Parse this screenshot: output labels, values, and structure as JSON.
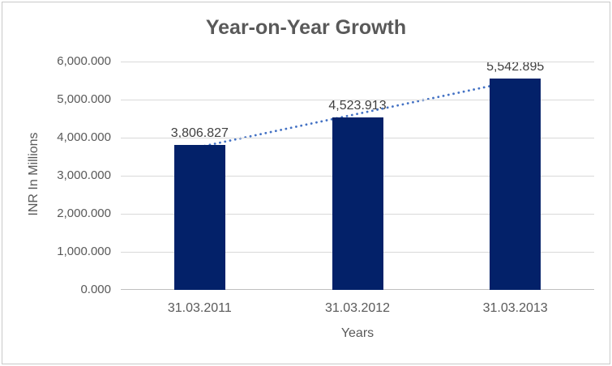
{
  "chart_data": {
    "type": "bar",
    "title": "Year-on-Year Growth",
    "xlabel": "Years",
    "ylabel": "INR In Millions",
    "categories": [
      "31.03.2011",
      "31.03.2012",
      "31.03.2013"
    ],
    "values": [
      3806.827,
      4523.913,
      5542.895
    ],
    "data_labels": [
      "3,806.827",
      "4,523.913",
      "5,542.895"
    ],
    "ylim": [
      0,
      6000
    ],
    "y_ticks": [
      0,
      1000,
      2000,
      3000,
      4000,
      5000,
      6000
    ],
    "y_tick_labels": [
      "0.000",
      "1,000.000",
      "2,000.000",
      "3,000.000",
      "4,000.000",
      "5,000.000",
      "6,000.000"
    ],
    "grid": "horizontal",
    "legend": "none",
    "trendline": {
      "type": "linear",
      "style": "dotted"
    },
    "colors": {
      "bar": "#032169",
      "trendline": "#4472C4",
      "gridline": "#D9D9D9",
      "axis_line": "#BFBFBF",
      "border": "#C9C9C9",
      "title_text": "#595959",
      "tick_text": "#595959",
      "axis_title_text": "#595959",
      "data_label_text": "#404040",
      "background": "#FFFFFF"
    }
  }
}
